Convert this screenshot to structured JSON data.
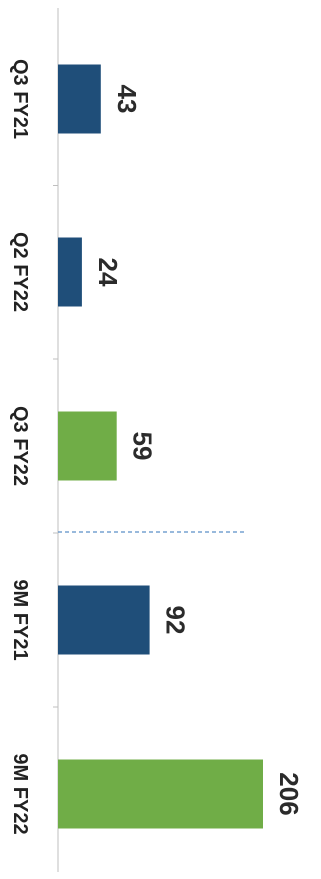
{
  "chart_data": {
    "type": "bar",
    "orientation": "horizontal",
    "categories": [
      "Q3 FY21",
      "Q2 FY22",
      "Q3 FY22",
      "9M FY21",
      "9M FY22"
    ],
    "values": [
      43,
      24,
      59,
      92,
      206
    ],
    "bar_colors": [
      "#1f4e79",
      "#1f4e79",
      "#70ad47",
      "#1f4e79",
      "#70ad47"
    ],
    "title": "",
    "xlabel": "",
    "ylabel": "",
    "xlim": [
      0,
      206
    ],
    "grid": false,
    "legend": "none",
    "separator_line": {
      "style": "dashed",
      "color": "#5b8fc7",
      "after_category": "Q3 FY22"
    }
  }
}
